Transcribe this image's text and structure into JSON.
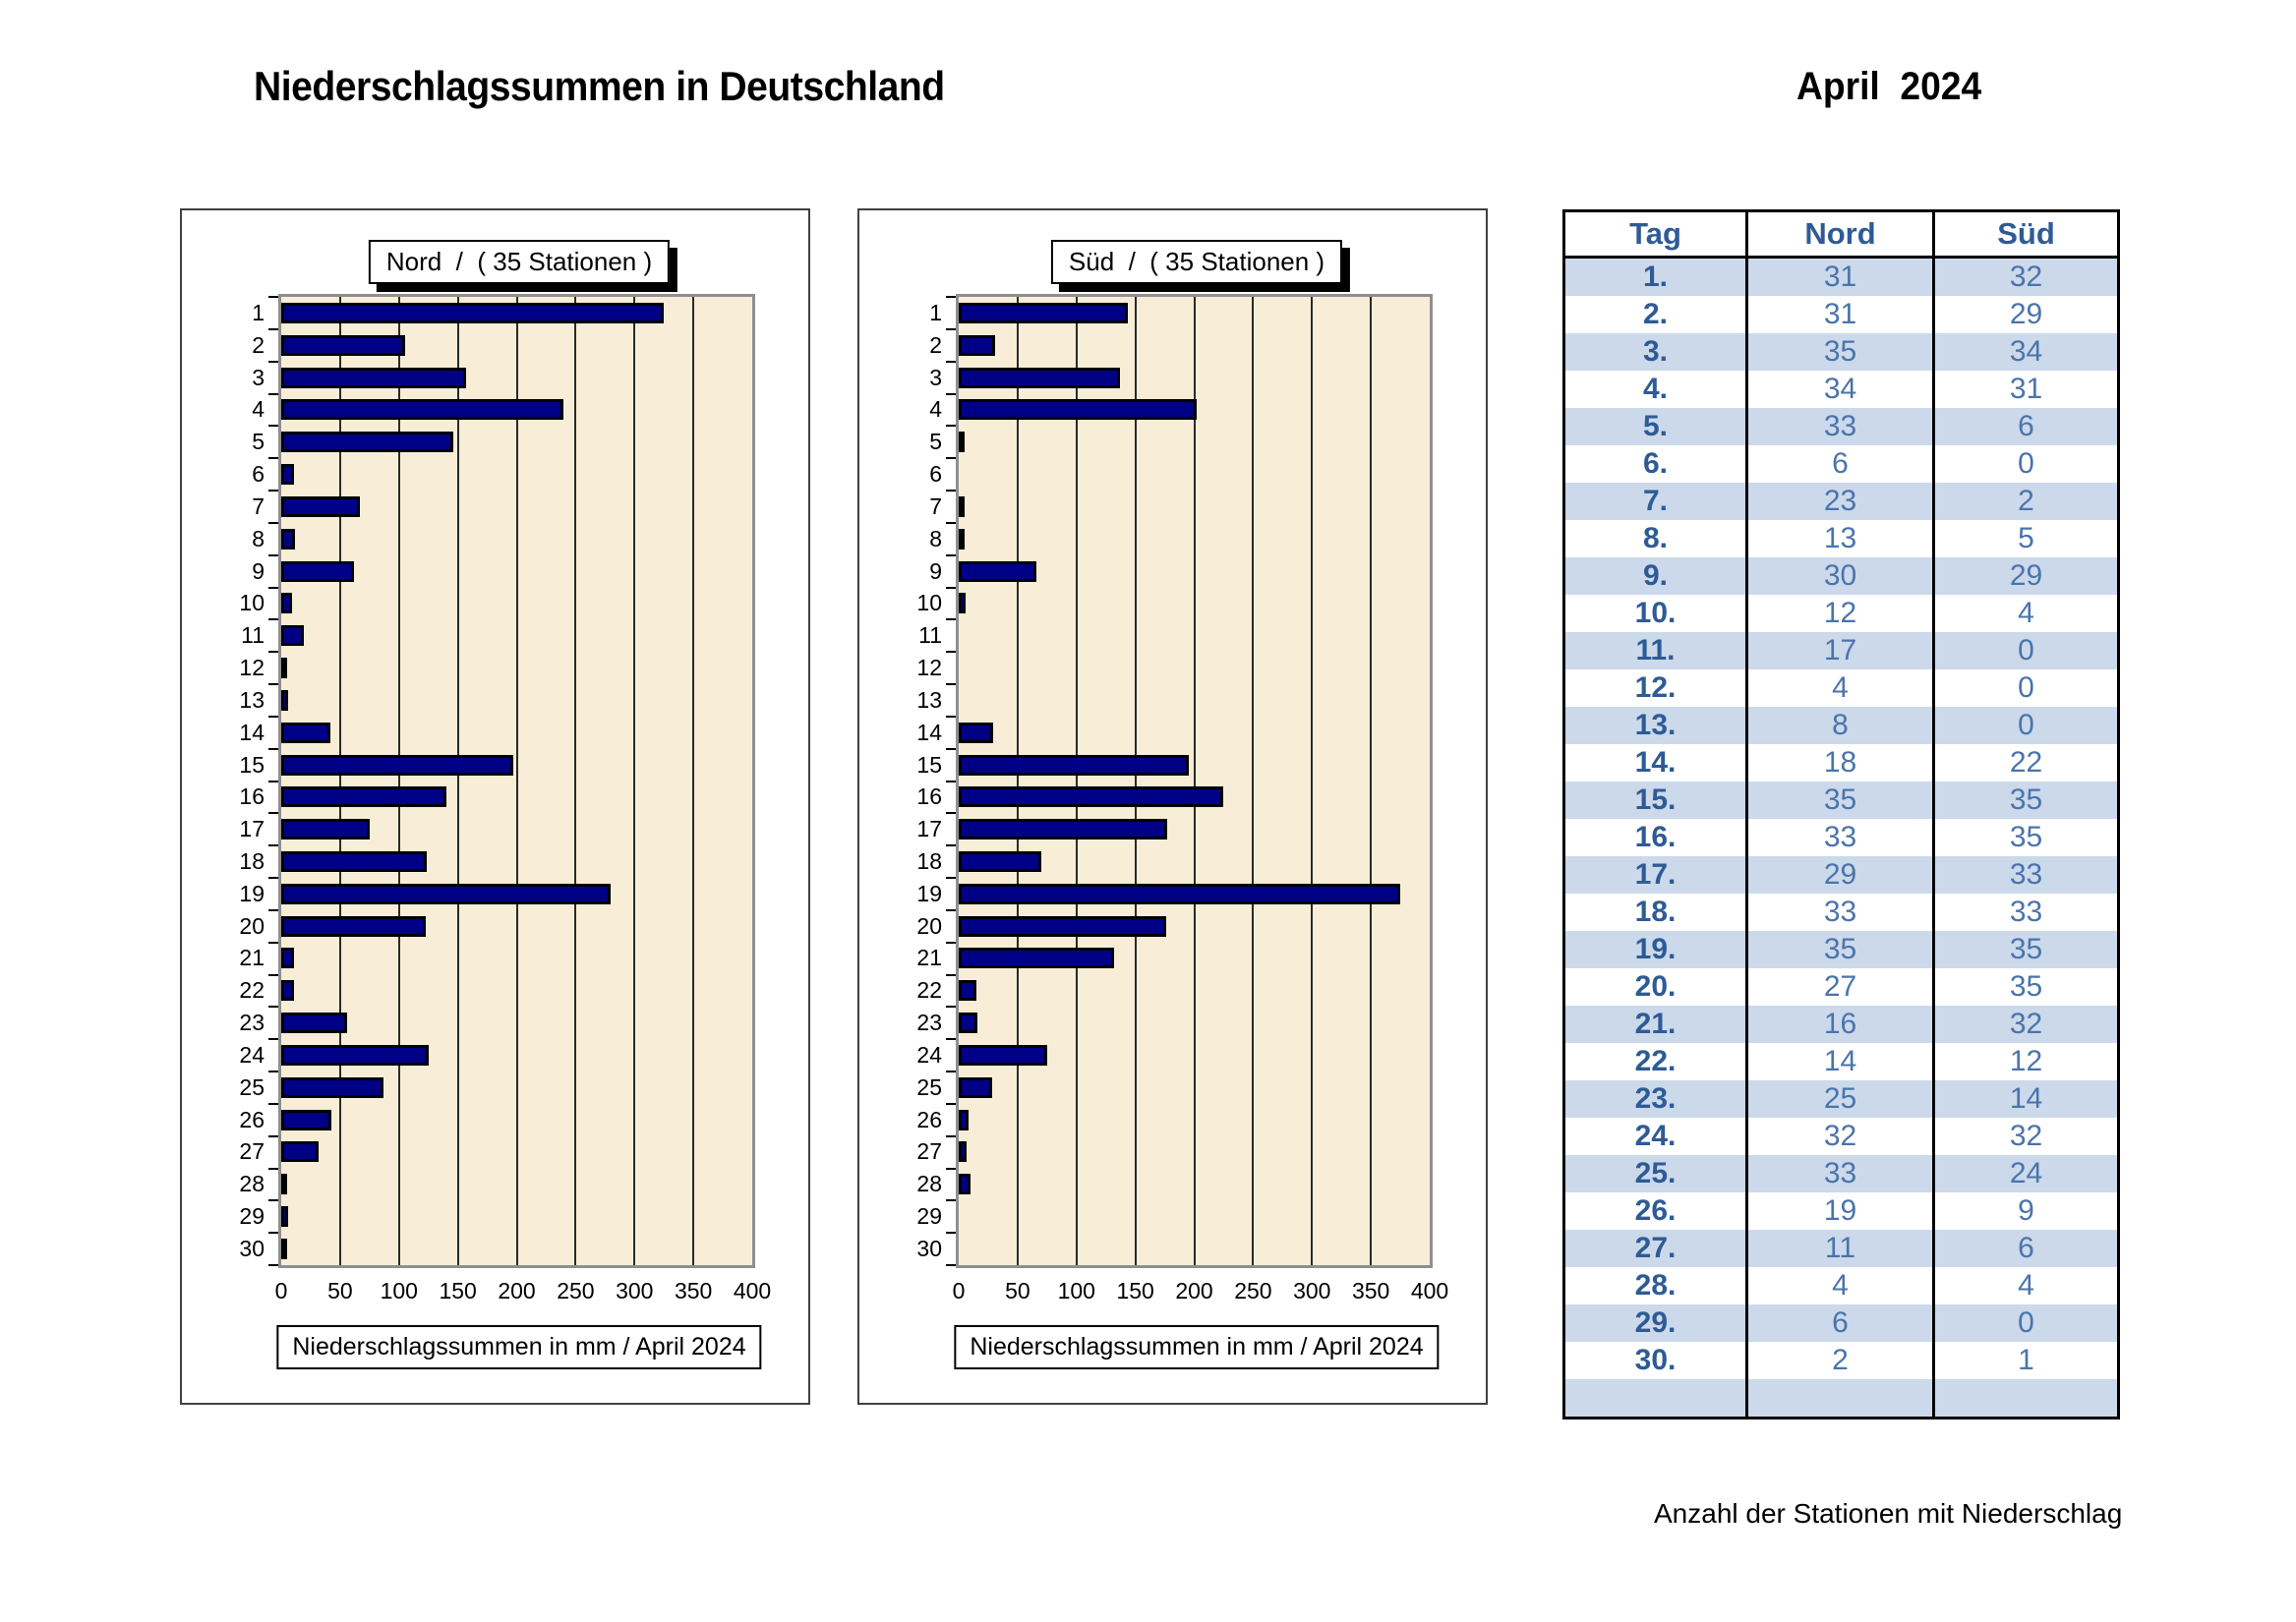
{
  "title": "Niederschlagssummen in Deutschland",
  "period": "April  2024",
  "days": [
    1,
    2,
    3,
    4,
    5,
    6,
    7,
    8,
    9,
    10,
    11,
    12,
    13,
    14,
    15,
    16,
    17,
    18,
    19,
    20,
    21,
    22,
    23,
    24,
    25,
    26,
    27,
    28,
    29,
    30
  ],
  "axis": {
    "min": 0,
    "max": 400,
    "step": 50,
    "ticks": [
      "0",
      "50",
      "100",
      "150",
      "200",
      "250",
      "300",
      "350",
      "400"
    ]
  },
  "charts": [
    {
      "name": "nord",
      "header": "Nord  /  ( 35 Stationen )",
      "caption": "Niederschlagssummen in mm / April 2024",
      "values_mm": [
        325,
        105,
        157,
        240,
        146,
        11,
        67,
        12,
        62,
        9,
        19,
        2,
        6,
        42,
        197,
        140,
        75,
        124,
        280,
        123,
        11,
        11,
        56,
        125,
        87,
        43,
        32,
        3,
        6,
        2
      ]
    },
    {
      "name": "sued",
      "header": "Süd  /  ( 35 Stationen )",
      "caption": "Niederschlagssummen in mm / April 2024",
      "values_mm": [
        144,
        31,
        137,
        202,
        5,
        0,
        2,
        3,
        66,
        6,
        0,
        0,
        0,
        29,
        195,
        225,
        177,
        70,
        375,
        176,
        132,
        15,
        16,
        75,
        28,
        8,
        7,
        10,
        0,
        0
      ]
    }
  ],
  "station_table": {
    "headers": [
      "Tag",
      "Nord",
      "Süd"
    ],
    "rows": [
      [
        "1.",
        31,
        32
      ],
      [
        "2.",
        31,
        29
      ],
      [
        "3.",
        35,
        34
      ],
      [
        "4.",
        34,
        31
      ],
      [
        "5.",
        33,
        6
      ],
      [
        "6.",
        6,
        0
      ],
      [
        "7.",
        23,
        2
      ],
      [
        "8.",
        13,
        5
      ],
      [
        "9.",
        30,
        29
      ],
      [
        "10.",
        12,
        4
      ],
      [
        "11.",
        17,
        0
      ],
      [
        "12.",
        4,
        0
      ],
      [
        "13.",
        8,
        0
      ],
      [
        "14.",
        18,
        22
      ],
      [
        "15.",
        35,
        35
      ],
      [
        "16.",
        33,
        35
      ],
      [
        "17.",
        29,
        33
      ],
      [
        "18.",
        33,
        33
      ],
      [
        "19.",
        35,
        35
      ],
      [
        "20.",
        27,
        35
      ],
      [
        "21.",
        16,
        32
      ],
      [
        "22.",
        14,
        12
      ],
      [
        "23.",
        25,
        14
      ],
      [
        "24.",
        32,
        32
      ],
      [
        "25.",
        33,
        24
      ],
      [
        "26.",
        19,
        9
      ],
      [
        "27.",
        11,
        6
      ],
      [
        "28.",
        4,
        4
      ],
      [
        "29.",
        6,
        0
      ],
      [
        "30.",
        2,
        1
      ]
    ],
    "caption": "Anzahl der Stationen mit Niederschlag"
  },
  "colors": {
    "bar_fill": "#000087",
    "bar_border": "#000000",
    "plot_background": "#F8EED7",
    "plot_border": "#8F8F8F",
    "table_stripe": "#CBD9EB",
    "table_header_text": "#2E5B96",
    "table_value_text": "#4B74AB"
  },
  "chart_data": [
    {
      "type": "bar",
      "orientation": "horizontal",
      "title": "Nord / ( 35 Stationen )",
      "xlabel": "Niederschlagssummen in mm / April 2024",
      "categories": [
        1,
        2,
        3,
        4,
        5,
        6,
        7,
        8,
        9,
        10,
        11,
        12,
        13,
        14,
        15,
        16,
        17,
        18,
        19,
        20,
        21,
        22,
        23,
        24,
        25,
        26,
        27,
        28,
        29,
        30
      ],
      "values": [
        325,
        105,
        157,
        240,
        146,
        11,
        67,
        12,
        62,
        9,
        19,
        2,
        6,
        42,
        197,
        140,
        75,
        124,
        280,
        123,
        11,
        11,
        56,
        125,
        87,
        43,
        32,
        3,
        6,
        2
      ],
      "xlim": [
        0,
        400
      ],
      "grid": true,
      "legend": "none"
    },
    {
      "type": "bar",
      "orientation": "horizontal",
      "title": "Süd / ( 35 Stationen )",
      "xlabel": "Niederschlagssummen in mm / April 2024",
      "categories": [
        1,
        2,
        3,
        4,
        5,
        6,
        7,
        8,
        9,
        10,
        11,
        12,
        13,
        14,
        15,
        16,
        17,
        18,
        19,
        20,
        21,
        22,
        23,
        24,
        25,
        26,
        27,
        28,
        29,
        30
      ],
      "values": [
        144,
        31,
        137,
        202,
        5,
        0,
        2,
        3,
        66,
        6,
        0,
        0,
        0,
        29,
        195,
        225,
        177,
        70,
        375,
        176,
        132,
        15,
        16,
        75,
        28,
        8,
        7,
        10,
        0,
        0
      ],
      "xlim": [
        0,
        400
      ],
      "grid": true,
      "legend": "none"
    },
    {
      "type": "table",
      "title": "Anzahl der Stationen mit Niederschlag",
      "columns": [
        "Tag",
        "Nord",
        "Süd"
      ],
      "rows": [
        [
          "1.",
          31,
          32
        ],
        [
          "2.",
          31,
          29
        ],
        [
          "3.",
          35,
          34
        ],
        [
          "4.",
          34,
          31
        ],
        [
          "5.",
          33,
          6
        ],
        [
          "6.",
          6,
          0
        ],
        [
          "7.",
          23,
          2
        ],
        [
          "8.",
          13,
          5
        ],
        [
          "9.",
          30,
          29
        ],
        [
          "10.",
          12,
          4
        ],
        [
          "11.",
          17,
          0
        ],
        [
          "12.",
          4,
          0
        ],
        [
          "13.",
          8,
          0
        ],
        [
          "14.",
          18,
          22
        ],
        [
          "15.",
          35,
          35
        ],
        [
          "16.",
          33,
          35
        ],
        [
          "17.",
          29,
          33
        ],
        [
          "18.",
          33,
          33
        ],
        [
          "19.",
          35,
          35
        ],
        [
          "20.",
          27,
          35
        ],
        [
          "21.",
          16,
          32
        ],
        [
          "22.",
          14,
          12
        ],
        [
          "23.",
          25,
          14
        ],
        [
          "24.",
          32,
          32
        ],
        [
          "25.",
          33,
          24
        ],
        [
          "26.",
          19,
          9
        ],
        [
          "27.",
          11,
          6
        ],
        [
          "28.",
          4,
          4
        ],
        [
          "29.",
          6,
          0
        ],
        [
          "30.",
          2,
          1
        ]
      ]
    }
  ]
}
